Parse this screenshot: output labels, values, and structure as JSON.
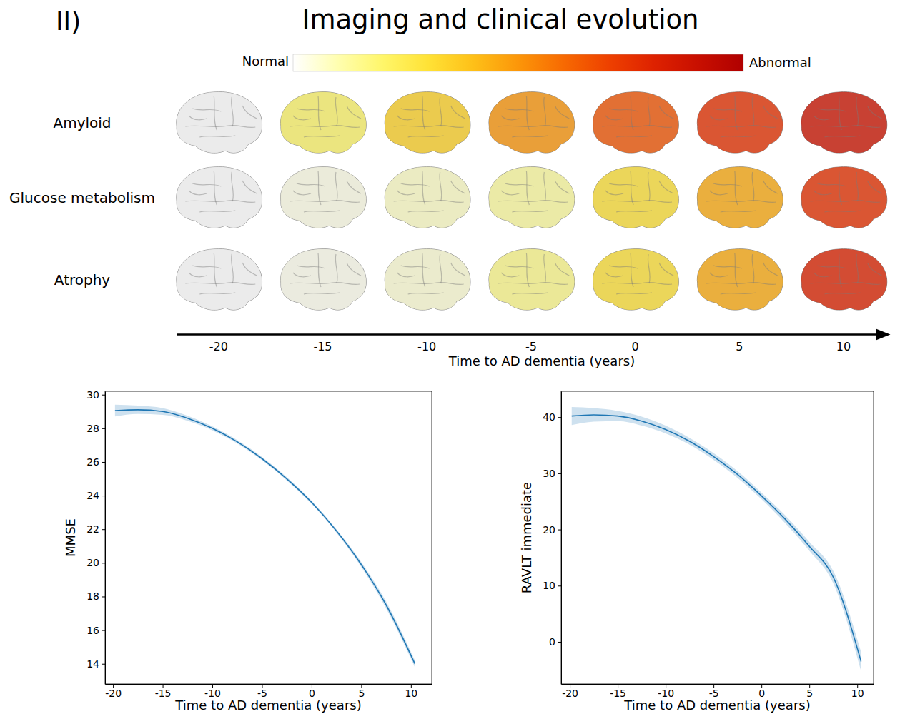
{
  "panel_label": "II)",
  "title": "Imaging and clinical evolution",
  "chart_data": [
    {
      "type": "heatmap",
      "colorbar": {
        "labels": [
          "Normal",
          "Abnormal"
        ],
        "range": [
          0,
          1
        ]
      },
      "x": [
        -20,
        -15,
        -10,
        -5,
        0,
        5,
        10
      ],
      "xlim": [
        -22,
        11.7
      ],
      "xticks": [
        -20,
        -15,
        -10,
        -5,
        0,
        5,
        10
      ],
      "x_label": "Time to AD dementia (years)",
      "series": [
        {
          "name": "Amyloid",
          "values": [
            0,
            0.2,
            0.35,
            0.5,
            0.65,
            0.75,
            0.87
          ]
        },
        {
          "name": "Glucose metabolism",
          "values": [
            0,
            0.03,
            0.07,
            0.12,
            0.3,
            0.45,
            0.75
          ]
        },
        {
          "name": "Atrophy",
          "values": [
            0,
            0.02,
            0.05,
            0.15,
            0.3,
            0.45,
            0.8
          ]
        }
      ]
    },
    {
      "type": "line",
      "x": [
        -19.8,
        -17.5,
        -15,
        -12.5,
        -10,
        -7.5,
        -5,
        -2.5,
        0,
        2.5,
        5,
        7.5,
        10.4
      ],
      "xlim": [
        -20.8,
        12.1
      ],
      "xticks": [
        -20,
        -15,
        -10,
        -5,
        0,
        5,
        10
      ],
      "ylim": [
        12.8,
        30.2
      ],
      "yticks": [
        14,
        16,
        18,
        20,
        22,
        24,
        26,
        28,
        30
      ],
      "x_label": "Time to AD dementia (years)",
      "y_label": "MMSE",
      "series": [
        {
          "color": "#1f77b4",
          "values": [
            29.05,
            29.1,
            29.0,
            28.6,
            28.0,
            27.2,
            26.2,
            25.0,
            23.6,
            21.9,
            19.9,
            17.5,
            14.0
          ],
          "lower": [
            28.7,
            28.85,
            28.8,
            28.45,
            27.88,
            27.1,
            26.1,
            24.9,
            23.5,
            21.8,
            19.75,
            17.3,
            13.8
          ],
          "upper": [
            29.4,
            29.35,
            29.2,
            28.75,
            28.12,
            27.3,
            26.3,
            25.1,
            23.7,
            22.0,
            20.05,
            17.7,
            14.2
          ]
        }
      ]
    },
    {
      "type": "line",
      "x": [
        -19.8,
        -17.5,
        -15,
        -12.5,
        -10,
        -7.5,
        -5,
        -2.5,
        0,
        2.5,
        5,
        7.5,
        10.4
      ],
      "xlim": [
        -20.9,
        11.7
      ],
      "xticks": [
        -20,
        -15,
        -10,
        -5,
        0,
        5,
        10
      ],
      "ylim": [
        -7.5,
        44.6
      ],
      "yticks": [
        0,
        10,
        20,
        30,
        40
      ],
      "x_label": "Time to AD dementia (years)",
      "y_label": "RAVLT immediate",
      "series": [
        {
          "color": "#1f77b4",
          "values": [
            40.2,
            40.4,
            40.2,
            39.3,
            37.8,
            35.7,
            33.0,
            29.8,
            26.0,
            21.8,
            17.0,
            11.5,
            -3.5
          ],
          "lower": [
            38.6,
            39.2,
            39.3,
            38.5,
            37.1,
            35.1,
            32.4,
            29.2,
            25.4,
            21.1,
            16.2,
            10.4,
            -5.2
          ],
          "upper": [
            41.8,
            41.6,
            41.1,
            40.1,
            38.5,
            36.3,
            33.6,
            30.4,
            26.6,
            22.5,
            17.8,
            12.6,
            -1.8
          ]
        }
      ]
    }
  ]
}
